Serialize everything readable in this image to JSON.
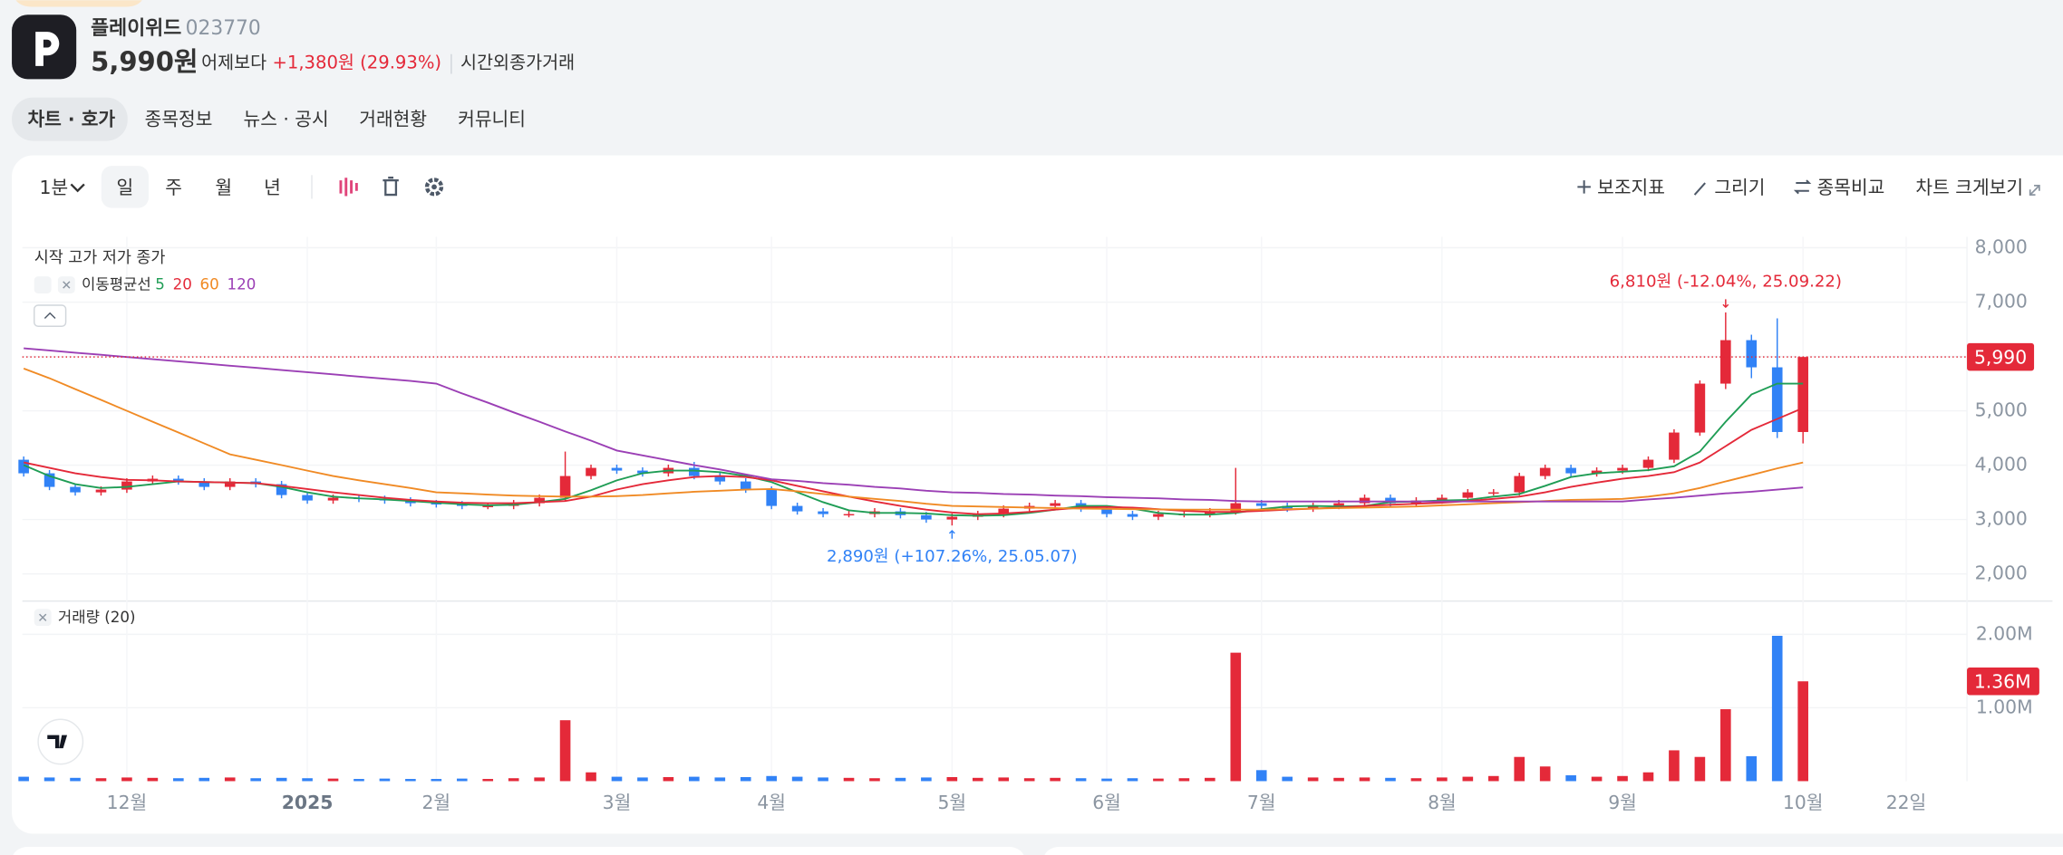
{
  "header": {
    "name": "플레이위드",
    "code": "023770",
    "price": "5,990원",
    "compare_text": "어제보다",
    "change": "+1,380원 (29.93%)",
    "after_hours": "시간외종가거래"
  },
  "tabs": [
    "차트 · 호가",
    "종목정보",
    "뉴스 · 공시",
    "거래현황",
    "커뮤니티"
  ],
  "toolbar": {
    "interval": "1분",
    "periods": [
      "일",
      "주",
      "월",
      "년"
    ],
    "actions": [
      "보조지표",
      "그리기",
      "종목비교",
      "차트 크게보기"
    ]
  },
  "chart_data": {
    "type": "candlestick",
    "ohlc_legend": "시작 고가 저가 종가",
    "ma_legend": "이동평균선",
    "categories": [
      null,
      null,
      null,
      null,
      "12월",
      null,
      null,
      null,
      null,
      null,
      null,
      "2025",
      null,
      null,
      null,
      null,
      "2월",
      null,
      null,
      null,
      null,
      null,
      null,
      "3월",
      null,
      null,
      null,
      null,
      null,
      "4월",
      null,
      null,
      null,
      null,
      null,
      null,
      "5월",
      null,
      null,
      null,
      null,
      null,
      "6월",
      null,
      null,
      null,
      null,
      null,
      "7월",
      null,
      null,
      null,
      null,
      null,
      null,
      "8월",
      null,
      null,
      null,
      null,
      null,
      null,
      "9월",
      null,
      null,
      null,
      null,
      null,
      null,
      "10월",
      null,
      null,
      null,
      "22일",
      null
    ],
    "ohlc": [
      [
        4100,
        4160,
        3790,
        3850
      ],
      [
        3850,
        3910,
        3540,
        3600
      ],
      [
        3600,
        3660,
        3440,
        3500
      ],
      [
        3500,
        3610,
        3440,
        3550
      ],
      [
        3550,
        3760,
        3490,
        3700
      ],
      [
        3700,
        3810,
        3640,
        3750
      ],
      [
        3750,
        3810,
        3640,
        3700
      ],
      [
        3700,
        3760,
        3540,
        3600
      ],
      [
        3600,
        3760,
        3540,
        3700
      ],
      [
        3700,
        3760,
        3590,
        3650
      ],
      [
        3650,
        3710,
        3390,
        3450
      ],
      [
        3450,
        3510,
        3290,
        3350
      ],
      [
        3350,
        3460,
        3290,
        3400
      ],
      [
        3400,
        3460,
        3320,
        3380
      ],
      [
        3380,
        3440,
        3290,
        3350
      ],
      [
        3350,
        3410,
        3240,
        3300
      ],
      [
        3300,
        3360,
        3220,
        3280
      ],
      [
        3280,
        3340,
        3190,
        3250
      ],
      [
        3250,
        3310,
        3190,
        3250
      ],
      [
        3250,
        3360,
        3190,
        3300
      ],
      [
        3300,
        3460,
        3240,
        3400
      ],
      [
        3400,
        4250,
        3340,
        3800
      ],
      [
        3800,
        4010,
        3740,
        3950
      ],
      [
        3950,
        4010,
        3840,
        3900
      ],
      [
        3900,
        3960,
        3790,
        3850
      ],
      [
        3850,
        4010,
        3790,
        3950
      ],
      [
        3950,
        4060,
        3740,
        3800
      ],
      [
        3800,
        3860,
        3640,
        3700
      ],
      [
        3700,
        3760,
        3490,
        3550
      ],
      [
        3550,
        3610,
        3190,
        3250
      ],
      [
        3250,
        3310,
        3090,
        3150
      ],
      [
        3150,
        3210,
        3040,
        3100
      ],
      [
        3100,
        3160,
        3040,
        3100
      ],
      [
        3100,
        3210,
        3040,
        3150
      ],
      [
        3150,
        3210,
        3020,
        3080
      ],
      [
        3080,
        3140,
        2940,
        3000
      ],
      [
        3000,
        3110,
        2890,
        3050
      ],
      [
        3050,
        3160,
        2990,
        3100
      ],
      [
        3100,
        3260,
        3040,
        3200
      ],
      [
        3200,
        3310,
        3140,
        3250
      ],
      [
        3250,
        3360,
        3190,
        3300
      ],
      [
        3300,
        3360,
        3140,
        3200
      ],
      [
        3200,
        3260,
        3040,
        3100
      ],
      [
        3100,
        3160,
        2990,
        3050
      ],
      [
        3050,
        3160,
        2990,
        3100
      ],
      [
        3100,
        3160,
        3040,
        3100
      ],
      [
        3100,
        3210,
        3040,
        3150
      ],
      [
        3150,
        3950,
        3090,
        3300
      ],
      [
        3300,
        3360,
        3190,
        3250
      ],
      [
        3250,
        3310,
        3140,
        3200
      ],
      [
        3200,
        3310,
        3140,
        3250
      ],
      [
        3250,
        3360,
        3190,
        3300
      ],
      [
        3300,
        3460,
        3240,
        3400
      ],
      [
        3400,
        3460,
        3240,
        3300
      ],
      [
        3300,
        3410,
        3240,
        3350
      ],
      [
        3350,
        3460,
        3290,
        3400
      ],
      [
        3400,
        3560,
        3340,
        3500
      ],
      [
        3500,
        3560,
        3440,
        3500
      ],
      [
        3500,
        3860,
        3440,
        3800
      ],
      [
        3800,
        4010,
        3740,
        3950
      ],
      [
        3950,
        4010,
        3790,
        3850
      ],
      [
        3850,
        3960,
        3790,
        3900
      ],
      [
        3900,
        4010,
        3840,
        3950
      ],
      [
        3950,
        4160,
        3890,
        4100
      ],
      [
        4100,
        4660,
        4040,
        4600
      ],
      [
        4600,
        5560,
        4540,
        5500
      ],
      [
        5500,
        6810,
        5400,
        6300
      ],
      [
        6300,
        6400,
        5600,
        5800
      ],
      [
        5800,
        6700,
        4500,
        4610
      ],
      [
        4610,
        5990,
        4400,
        5990
      ],
      null,
      null,
      null,
      null,
      null
    ],
    "up_color": "#e42939",
    "down_color": "#3182f6",
    "ylim": [
      1500,
      8200
    ],
    "yticks": [
      {
        "value": 2000,
        "label": "2,000"
      },
      {
        "value": 3000,
        "label": "3,000"
      },
      {
        "value": 4000,
        "label": "4,000"
      },
      {
        "value": 5000,
        "label": "5,000"
      },
      {
        "value": 6000,
        "label": "6,000"
      },
      {
        "value": 7000,
        "label": "7,000"
      },
      {
        "value": 8000,
        "label": "8,000"
      }
    ],
    "grid": true,
    "last_close_label": "5,990",
    "moving_averages": [
      {
        "name": "5",
        "color": "#1f9d55",
        "values": [
          4000,
          3800,
          3650,
          3580,
          3600,
          3650,
          3700,
          3690,
          3680,
          3670,
          3600,
          3500,
          3420,
          3390,
          3370,
          3340,
          3310,
          3280,
          3260,
          3270,
          3320,
          3380,
          3540,
          3720,
          3850,
          3900,
          3900,
          3870,
          3800,
          3690,
          3500,
          3320,
          3170,
          3120,
          3120,
          3110,
          3080,
          3070,
          3080,
          3120,
          3180,
          3250,
          3250,
          3200,
          3120,
          3090,
          3090,
          3120,
          3190,
          3240,
          3250,
          3240,
          3250,
          3320,
          3330,
          3350,
          3360,
          3420,
          3470,
          3620,
          3780,
          3850,
          3880,
          3910,
          3980,
          4250,
          4800,
          5300,
          5500,
          5500,
          null,
          null,
          null,
          null,
          null
        ]
      },
      {
        "name": "20",
        "color": "#e42939",
        "values": [
          4050,
          3950,
          3850,
          3780,
          3730,
          3720,
          3700,
          3690,
          3680,
          3670,
          3620,
          3560,
          3500,
          3450,
          3400,
          3360,
          3330,
          3310,
          3300,
          3300,
          3320,
          3340,
          3420,
          3550,
          3650,
          3720,
          3780,
          3800,
          3780,
          3720,
          3620,
          3520,
          3420,
          3330,
          3250,
          3180,
          3130,
          3100,
          3110,
          3140,
          3180,
          3220,
          3230,
          3220,
          3190,
          3160,
          3140,
          3140,
          3160,
          3180,
          3200,
          3220,
          3250,
          3270,
          3290,
          3310,
          3340,
          3380,
          3420,
          3500,
          3600,
          3680,
          3750,
          3800,
          3870,
          4050,
          4350,
          4650,
          4850,
          5050,
          null,
          null,
          null,
          null,
          null
        ]
      },
      {
        "name": "60",
        "color": "#f08a24",
        "values": [
          5780,
          5600,
          5400,
          5200,
          5000,
          4800,
          4600,
          4400,
          4200,
          4100,
          4000,
          3900,
          3800,
          3720,
          3650,
          3580,
          3500,
          3480,
          3460,
          3440,
          3430,
          3420,
          3420,
          3430,
          3450,
          3480,
          3510,
          3530,
          3550,
          3560,
          3520,
          3470,
          3420,
          3380,
          3340,
          3290,
          3250,
          3240,
          3230,
          3220,
          3210,
          3200,
          3195,
          3190,
          3185,
          3180,
          3180,
          3180,
          3180,
          3190,
          3200,
          3210,
          3220,
          3230,
          3240,
          3260,
          3280,
          3300,
          3320,
          3340,
          3360,
          3370,
          3380,
          3420,
          3480,
          3580,
          3700,
          3820,
          3940,
          4050,
          null,
          null,
          null,
          null,
          null
        ]
      },
      {
        "name": "120",
        "color": "#9b3fb5",
        "values": [
          6150,
          6110,
          6070,
          6030,
          5990,
          5950,
          5910,
          5870,
          5830,
          5790,
          5750,
          5710,
          5670,
          5630,
          5590,
          5550,
          5500,
          5320,
          5150,
          4970,
          4800,
          4620,
          4450,
          4270,
          4180,
          4090,
          4000,
          3920,
          3830,
          3740,
          3710,
          3670,
          3640,
          3600,
          3570,
          3530,
          3500,
          3490,
          3470,
          3460,
          3440,
          3430,
          3410,
          3400,
          3390,
          3370,
          3360,
          3340,
          3330,
          3330,
          3330,
          3330,
          3330,
          3330,
          3330,
          3330,
          3330,
          3330,
          3330,
          3330,
          3330,
          3330,
          3330,
          3370,
          3400,
          3440,
          3480,
          3510,
          3550,
          3590,
          null,
          null,
          null,
          null,
          null
        ]
      }
    ],
    "annotations": [
      {
        "text": "6,810원 (-12.04%, 25.09.22)",
        "value": 6810,
        "color": "#e42939"
      },
      {
        "text": "2,890원 (+107.26%, 25.05.07)",
        "value": 2890,
        "color": "#3182f6"
      }
    ],
    "volume": {
      "name": "거래량 (20)",
      "values": [
        60000,
        50000,
        45000,
        40000,
        50000,
        45000,
        40000,
        45000,
        50000,
        40000,
        45000,
        40000,
        35000,
        30000,
        35000,
        30000,
        30000,
        35000,
        30000,
        40000,
        50000,
        830000,
        120000,
        60000,
        50000,
        55000,
        60000,
        50000,
        55000,
        70000,
        60000,
        50000,
        45000,
        40000,
        45000,
        50000,
        55000,
        45000,
        50000,
        40000,
        45000,
        40000,
        35000,
        40000,
        35000,
        40000,
        45000,
        1750000,
        150000,
        60000,
        50000,
        45000,
        50000,
        45000,
        40000,
        50000,
        60000,
        70000,
        330000,
        200000,
        80000,
        60000,
        70000,
        120000,
        420000,
        330000,
        980000,
        340000,
        1980000,
        1360000,
        null,
        null,
        null,
        null,
        null
      ],
      "ylim": [
        0,
        2400000
      ],
      "yticks": [
        {
          "value": 1000000,
          "label": "1.00M"
        },
        {
          "value": 2000000,
          "label": "2.00M"
        }
      ],
      "last_label": "1.36M"
    }
  }
}
